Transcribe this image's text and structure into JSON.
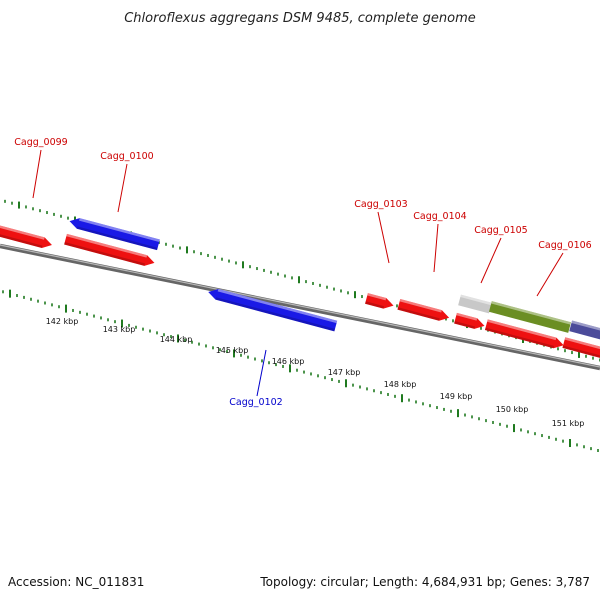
{
  "header": {
    "title": "Chloroflexus aggregans DSM 9485, complete genome"
  },
  "footer": {
    "accession": "Accession: NC_011831",
    "summary": "Topology: circular; Length: 4,684,931 bp; Genes: 3,787"
  },
  "colors": {
    "forward_strand": "#ee1111",
    "reverse_strand": "#1a1ae6",
    "backbone": "#888888",
    "ticks": "#1f7a1f",
    "label_forward": "#cc0000",
    "label_reverse": "#0000cc",
    "feature_grey": "#c8c8c8",
    "feature_olive": "#6b8e23",
    "feature_slate": "#4b4b9a"
  },
  "scale": {
    "unit": "kbp",
    "labels": [
      "142 kbp",
      "143 kbp",
      "144 kbp",
      "145 kbp",
      "146 kbp",
      "147 kbp",
      "148 kbp",
      "149 kbp",
      "150 kbp",
      "151 kbp"
    ]
  },
  "gene_labels": [
    {
      "name": "Cagg_0099",
      "strand": "forward"
    },
    {
      "name": "Cagg_0100",
      "strand": "forward"
    },
    {
      "name": "Cagg_0102",
      "strand": "reverse"
    },
    {
      "name": "Cagg_0103",
      "strand": "forward"
    },
    {
      "name": "Cagg_0104",
      "strand": "forward"
    },
    {
      "name": "Cagg_0105",
      "strand": "forward"
    },
    {
      "name": "Cagg_0106",
      "strand": "forward"
    }
  ]
}
